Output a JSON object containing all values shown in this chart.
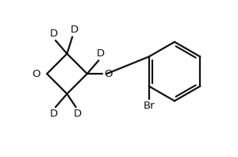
{
  "background_color": "#ffffff",
  "line_color": "#111111",
  "lw": 1.6,
  "figsize": [
    3.0,
    1.98
  ],
  "dpi": 100,
  "xlim": [
    0,
    10
  ],
  "ylim": [
    0,
    6.6
  ]
}
